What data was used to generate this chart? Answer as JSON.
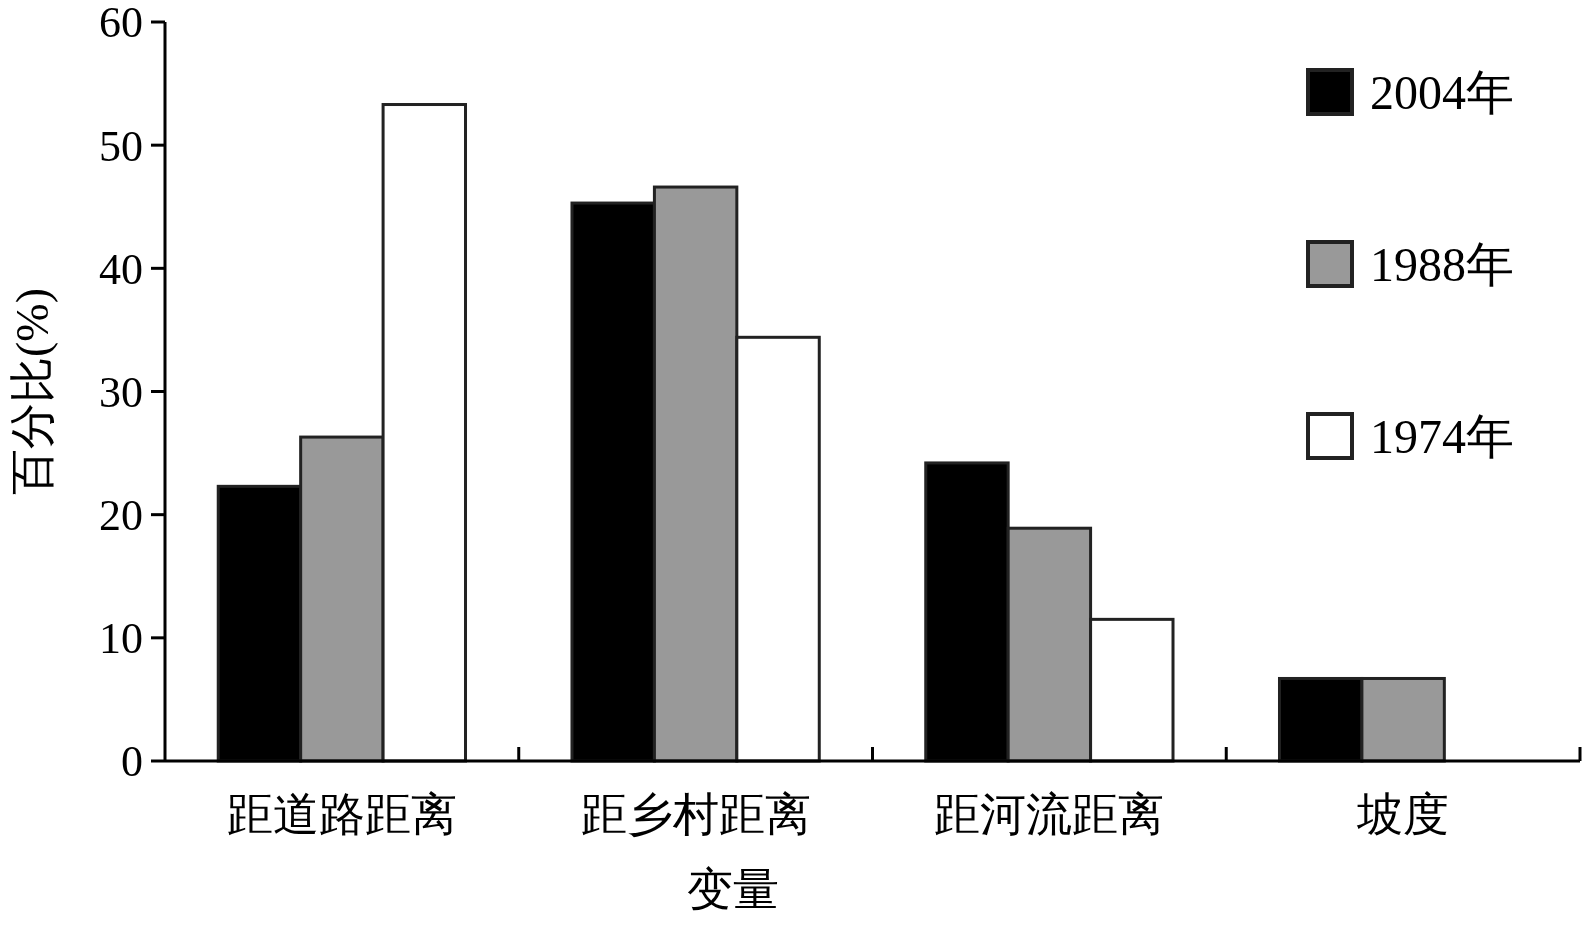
{
  "chart_data": {
    "type": "bar",
    "xlabel": "变量",
    "ylabel": "百分比(%)",
    "categories": [
      "距道路距离",
      "距乡村距离",
      "距河流距离",
      "坡度"
    ],
    "series": [
      {
        "name": "2004年",
        "color": "#000000",
        "values": [
          22.3,
          45.3,
          24.2,
          6.7
        ]
      },
      {
        "name": "1988年",
        "color": "#999999",
        "values": [
          26.3,
          46.6,
          18.9,
          6.7
        ]
      },
      {
        "name": "1974年",
        "color": "#ffffff",
        "values": [
          53.3,
          34.4,
          11.5,
          null
        ]
      }
    ],
    "ylim": [
      0,
      60
    ],
    "yticks": [
      0,
      10,
      20,
      30,
      40,
      50,
      60
    ],
    "grid": false,
    "legend": "top right"
  }
}
